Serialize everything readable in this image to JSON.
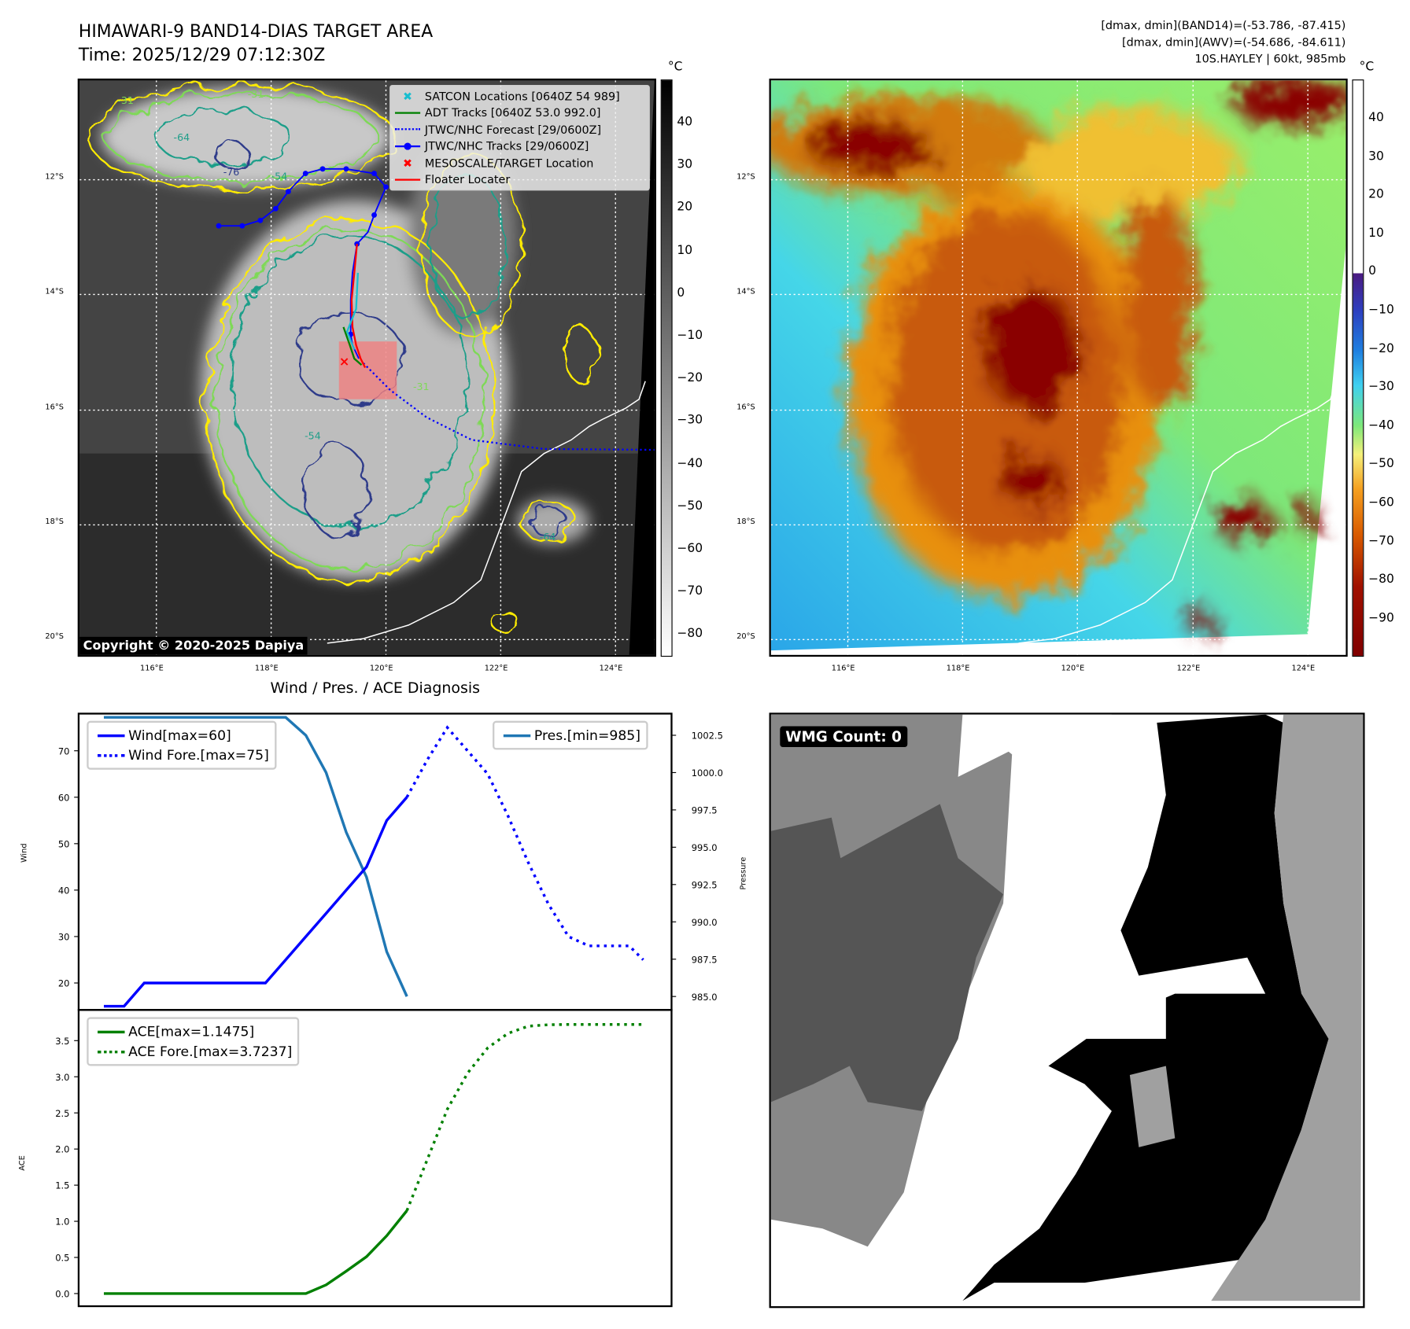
{
  "header": {
    "title": "HIMAWARI-9 BAND14-DIAS TARGET AREA",
    "time": "Time: 2025/12/29 07:12:30Z",
    "info_band14": "[dmax, dmin](BAND14)=(-53.786, -87.415)",
    "info_awv": "[dmax, dmin](AWV)=(-54.686, -84.611)",
    "info_storm": "10S.HAYLEY | 60kt, 985mb"
  },
  "maps": {
    "lat_ticks": [
      "12°S",
      "14°S",
      "16°S",
      "18°S",
      "20°S"
    ],
    "lon_ticks": [
      "116°E",
      "118°E",
      "120°E",
      "122°E",
      "124°E"
    ],
    "unit": "°C",
    "left_colorbar_ticks": [
      "40",
      "30",
      "20",
      "10",
      "0",
      "−10",
      "−20",
      "−30",
      "−40",
      "−50",
      "−60",
      "−70",
      "−80"
    ],
    "right_colorbar_ticks": [
      "40",
      "30",
      "20",
      "10",
      "0",
      "−10",
      "−20",
      "−30",
      "−40",
      "−50",
      "−60",
      "−70",
      "−80",
      "−90"
    ],
    "contour_labels": [
      "-31",
      "-31",
      "-54",
      "-64",
      "-76",
      "-54",
      "-31",
      "-64"
    ],
    "copyright": "Copyright © 2020-2025 Dapiya",
    "legend": [
      {
        "label": "SATCON Locations [0640Z 54 989]",
        "color": "#17becf",
        "icon": "x-marker-icon"
      },
      {
        "label": "ADT Tracks [0640Z 53.0 992.0]",
        "color": "#008000",
        "icon": "solid-line-icon"
      },
      {
        "label": "JTWC/NHC Forecast [29/0600Z]",
        "color": "#0000ff",
        "icon": "dotted-line-icon"
      },
      {
        "label": "JTWC/NHC Tracks [29/0600Z]",
        "color": "#0000ff",
        "icon": "line-dot-icon"
      },
      {
        "label": "MESOSCALE/TARGET Location",
        "color": "#ff0000",
        "icon": "x-marker-icon"
      },
      {
        "label": "Floater Locater",
        "color": "#ff0000",
        "icon": "solid-line-icon"
      }
    ]
  },
  "wmg": {
    "label": "WMG Count: 0"
  },
  "chart_data": [
    {
      "type": "line",
      "title": "Wind / Pres. / ACE Diagnosis",
      "ylabel": "Wind",
      "ylabel_right": "Pressure",
      "xlim": [
        -1.25,
        28.1
      ],
      "ylim": [
        14.2,
        78
      ],
      "ylim_right": [
        984.1,
        1003.95
      ],
      "yticks": [
        20,
        30,
        40,
        50,
        60,
        70
      ],
      "yticks_right": [
        "985.0",
        "987.5",
        "990.0",
        "992.5",
        "995.0",
        "997.5",
        "1000.0",
        "1002.5"
      ],
      "series": [
        {
          "name": "Wind[max=60]",
          "axis": "left",
          "color": "#0000ff",
          "style": "solid",
          "x": [
            0,
            1,
            2,
            3,
            4,
            5,
            6,
            7,
            8,
            9,
            10,
            11,
            12,
            13,
            14,
            15
          ],
          "values": [
            15,
            15,
            20,
            20,
            20,
            20,
            20,
            20,
            20,
            25,
            30,
            35,
            40,
            45,
            55,
            60
          ]
        },
        {
          "name": "Wind Fore.[max=75]",
          "axis": "left",
          "color": "#0000ff",
          "style": "dotted",
          "x": [
            15,
            16,
            17,
            18,
            19,
            20,
            21,
            22,
            23,
            24,
            25,
            26,
            26.7
          ],
          "values": [
            60,
            68,
            75,
            70,
            65,
            56,
            46,
            37,
            30,
            28,
            28,
            28,
            25
          ]
        },
        {
          "name": "Pres.[min=985]",
          "axis": "right",
          "color": "#1f77b4",
          "style": "solid",
          "x": [
            0,
            1,
            2,
            3,
            4,
            5,
            6,
            7,
            8,
            9,
            10,
            11,
            12,
            13,
            14,
            15
          ],
          "values": [
            1003.7,
            1003.7,
            1003.7,
            1003.7,
            1003.7,
            1003.7,
            1003.7,
            1003.7,
            1003.7,
            1003.7,
            1002.5,
            1000,
            996,
            993,
            988,
            985
          ]
        }
      ],
      "legend_left": "top-left",
      "legend_right": "top-right"
    },
    {
      "type": "line",
      "ylabel": "ACE",
      "xlim": [
        -1.25,
        28.1
      ],
      "ylim": [
        -0.175,
        3.925
      ],
      "yticks": [
        "0.0",
        "0.5",
        "1.0",
        "1.5",
        "2.0",
        "2.5",
        "3.0",
        "3.5"
      ],
      "series": [
        {
          "name": "ACE[max=1.1475]",
          "color": "#008000",
          "style": "solid",
          "x": [
            0,
            1,
            2,
            3,
            4,
            5,
            6,
            7,
            8,
            9,
            10,
            11,
            12,
            13,
            14,
            15
          ],
          "values": [
            0,
            0,
            0,
            0,
            0,
            0,
            0,
            0,
            0,
            0,
            0,
            0.12,
            0.31,
            0.51,
            0.8,
            1.1475
          ]
        },
        {
          "name": "ACE Fore.[max=3.7237]",
          "color": "#008000",
          "style": "dotted",
          "x": [
            15,
            16,
            17,
            18,
            19,
            20,
            21,
            22,
            23,
            24,
            25,
            26,
            26.7
          ],
          "values": [
            1.1475,
            1.85,
            2.55,
            3.05,
            3.4,
            3.6,
            3.7,
            3.72,
            3.7237,
            3.7237,
            3.7237,
            3.7237,
            3.7237
          ]
        }
      ],
      "legend": "top-left"
    }
  ]
}
